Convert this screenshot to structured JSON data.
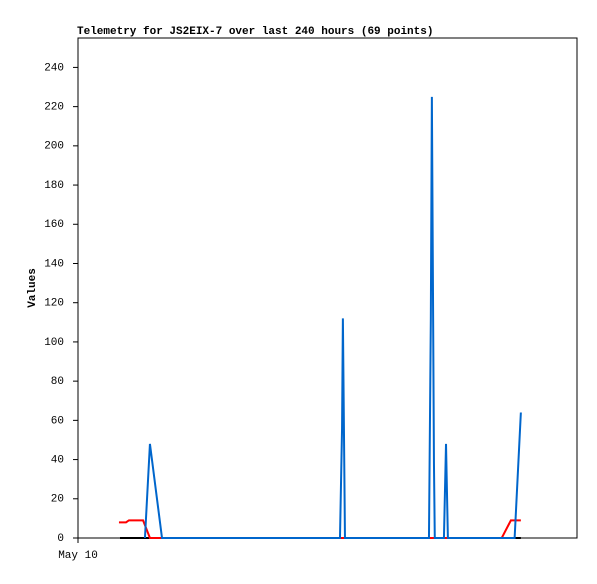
{
  "chart_data": {
    "type": "line",
    "title": "Telemetry for JS2EIX-7 over last 240 hours (69 points)",
    "y_label": "Values",
    "xlim": [
      0,
      240
    ],
    "xticks": [
      {
        "value": 0,
        "label": "May 10"
      }
    ],
    "ylim": [
      0,
      255
    ],
    "yticks": [
      0,
      20,
      40,
      60,
      80,
      100,
      120,
      140,
      160,
      180,
      200,
      220,
      240
    ],
    "series": [
      {
        "color": "#000000",
        "x": [
          20.2,
          213
        ],
        "values": [
          0,
          0
        ]
      },
      {
        "color": "#ff0000",
        "x": [
          19.7,
          23.1,
          24.5,
          31.3,
          34.6,
          203.8,
          208.2,
          213
        ],
        "values": [
          8,
          8,
          9,
          9,
          0,
          0,
          9,
          9
        ]
      },
      {
        "color": "#0066cc",
        "x": [
          32.2,
          34.6,
          40.4,
          126,
          127,
          127.4,
          128.4,
          168.8,
          169.7,
          170.2,
          171.2,
          171.6,
          176,
          177,
          177.9,
          210,
          213
        ],
        "values": [
          0,
          48,
          0,
          0,
          56,
          112,
          0,
          0,
          112,
          225,
          38,
          0,
          0,
          48,
          0,
          0,
          64
        ]
      }
    ]
  }
}
